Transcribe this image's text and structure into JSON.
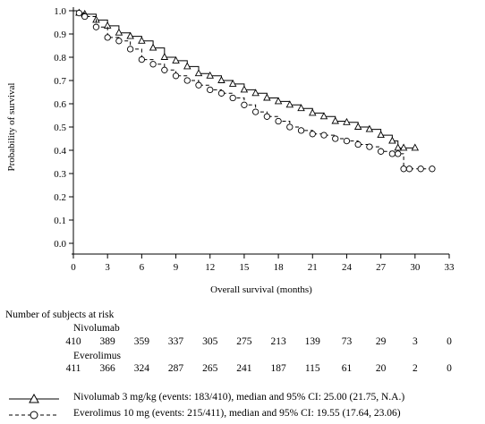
{
  "chart_data": {
    "type": "line",
    "ylabel": "Probability of survival",
    "xlabel": "Overall survival (months)",
    "xlim": [
      0,
      33
    ],
    "ylim": [
      0.0,
      1.0
    ],
    "x_ticks": [
      "0",
      "3",
      "6",
      "9",
      "12",
      "15",
      "18",
      "21",
      "24",
      "27",
      "30",
      "33"
    ],
    "y_ticks": [
      "0.0",
      "0.1",
      "0.2",
      "0.3",
      "0.4",
      "0.5",
      "0.6",
      "0.7",
      "0.8",
      "0.9",
      "1.0"
    ],
    "grid": false,
    "series": [
      {
        "name": "Nivolumab 3 mg/kg (events: 183/410), median and 95% CI: 25.00 (21.75, N.A.)",
        "line_style": "solid",
        "marker": "triangle",
        "color": "#000000",
        "x": [
          0,
          0.5,
          1,
          2,
          3,
          4,
          5,
          6,
          7,
          8,
          9,
          10,
          11,
          12,
          13,
          14,
          15,
          16,
          17,
          18,
          19,
          20,
          21,
          22,
          23,
          24,
          25,
          26,
          27,
          28,
          28.5,
          29,
          30
        ],
        "y": [
          1.0,
          0.99,
          0.985,
          0.96,
          0.935,
          0.905,
          0.89,
          0.87,
          0.84,
          0.8,
          0.785,
          0.76,
          0.73,
          0.72,
          0.7,
          0.685,
          0.66,
          0.645,
          0.625,
          0.61,
          0.595,
          0.58,
          0.56,
          0.545,
          0.525,
          0.52,
          0.5,
          0.49,
          0.465,
          0.44,
          0.41,
          0.41,
          0.41
        ]
      },
      {
        "name": "Everolimus 10 mg (events: 215/411), median and 95% CI: 19.55 (17.64, 23.06)",
        "line_style": "dashed",
        "marker": "circle",
        "color": "#000000",
        "x": [
          0,
          0.5,
          1,
          2,
          3,
          4,
          5,
          6,
          7,
          8,
          9,
          10,
          11,
          12,
          13,
          14,
          15,
          16,
          17,
          18,
          19,
          20,
          21,
          22,
          23,
          24,
          25,
          26,
          27,
          28,
          28.5,
          29,
          29.5,
          30.5,
          31.5
        ],
        "y": [
          1.0,
          0.99,
          0.975,
          0.93,
          0.885,
          0.87,
          0.835,
          0.79,
          0.77,
          0.745,
          0.72,
          0.7,
          0.68,
          0.66,
          0.645,
          0.625,
          0.595,
          0.565,
          0.545,
          0.525,
          0.5,
          0.485,
          0.47,
          0.465,
          0.45,
          0.44,
          0.425,
          0.415,
          0.395,
          0.385,
          0.385,
          0.32,
          0.32,
          0.32,
          0.32
        ]
      }
    ],
    "risk_table": {
      "title": "Number of subjects at risk",
      "groups": [
        {
          "label": "Nivolumab",
          "counts": [
            "410",
            "389",
            "359",
            "337",
            "305",
            "275",
            "213",
            "139",
            "73",
            "29",
            "3",
            "0"
          ]
        },
        {
          "label": "Everolimus",
          "counts": [
            "411",
            "366",
            "324",
            "287",
            "265",
            "241",
            "187",
            "115",
            "61",
            "20",
            "2",
            "0"
          ]
        }
      ]
    },
    "legend": [
      {
        "text": "Nivolumab 3 mg/kg (events: 183/410), median and 95% CI: 25.00 (21.75, N.A.)"
      },
      {
        "text": "Everolimus 10 mg (events: 215/411), median and 95% CI: 19.55 (17.64, 23.06)"
      }
    ]
  }
}
